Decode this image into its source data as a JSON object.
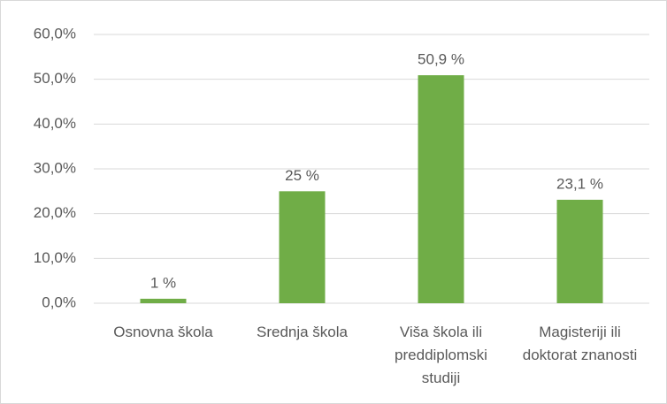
{
  "chart_data": {
    "type": "bar",
    "categories": [
      "Osnovna škola",
      "Srednja škola",
      "Viša škola ili preddiplomski studiji",
      "Magisteriji ili doktorat znanosti"
    ],
    "values": [
      1,
      25,
      50.9,
      23.1
    ],
    "value_labels": [
      "1 %",
      "25 %",
      "50,9 %",
      "23,1 %"
    ],
    "color": "#70ad47",
    "ylim": [
      0,
      60
    ],
    "yticks": [
      {
        "value": 0,
        "label": "0,0%"
      },
      {
        "value": 10,
        "label": "10,0%"
      },
      {
        "value": 20,
        "label": "20,0%"
      },
      {
        "value": 30,
        "label": "30,0%"
      },
      {
        "value": 40,
        "label": "40,0%"
      },
      {
        "value": 50,
        "label": "50,0%"
      },
      {
        "value": 60,
        "label": "60,0%"
      }
    ],
    "grid": true
  }
}
